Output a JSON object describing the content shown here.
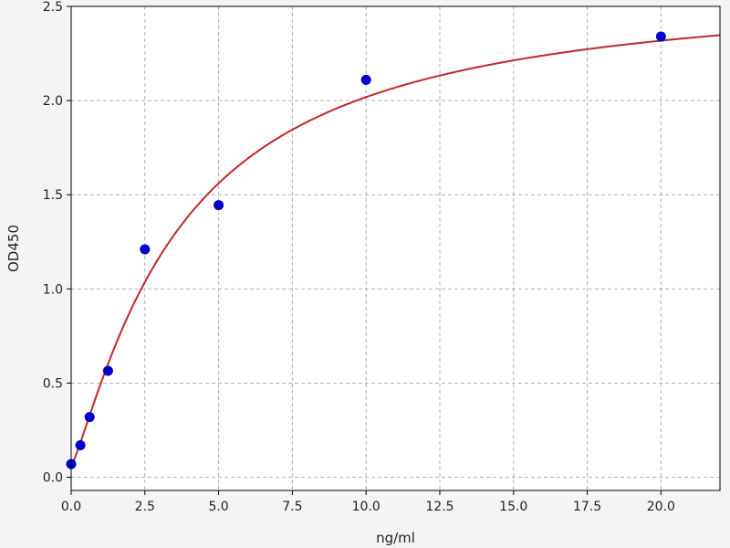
{
  "chart_data": {
    "type": "scatter",
    "title": "",
    "xlabel": "ng/ml",
    "ylabel": "OD450",
    "xlim": [
      0,
      22
    ],
    "ylim": [
      -0.07,
      2.5
    ],
    "grid": true,
    "xticks": [
      0.0,
      2.5,
      5.0,
      7.5,
      10.0,
      12.5,
      15.0,
      17.5,
      20.0
    ],
    "xtick_labels": [
      "0.0",
      "2.5",
      "5.0",
      "7.5",
      "10.0",
      "12.5",
      "15.0",
      "17.5",
      "20.0"
    ],
    "yticks": [
      0.0,
      0.5,
      1.0,
      1.5,
      2.0,
      2.5
    ],
    "ytick_labels": [
      "0.0",
      "0.5",
      "1.0",
      "1.5",
      "2.0",
      "2.5"
    ],
    "points": {
      "x": [
        0,
        0.3125,
        0.625,
        1.25,
        2.5,
        5,
        10,
        20
      ],
      "y": [
        0.07,
        0.17,
        0.32,
        0.565,
        1.21,
        1.445,
        2.11,
        2.34
      ],
      "color": "#0000cc"
    },
    "fit_curve": {
      "type": "four-parameter-logistic",
      "bottom": 0.06,
      "top": 2.62,
      "ec50": 3.74,
      "hill": 1.2,
      "color": "#c0282a"
    }
  }
}
